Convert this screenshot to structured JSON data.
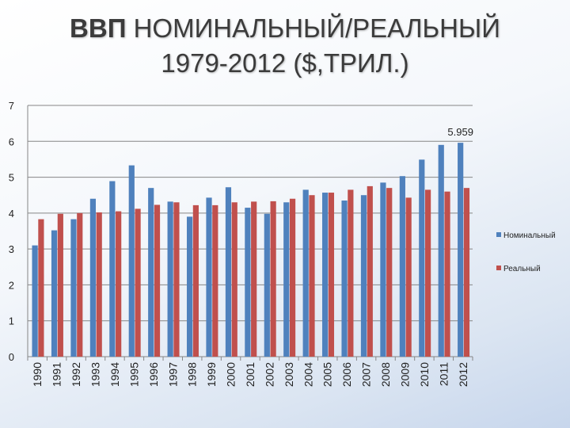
{
  "title_bold": "ВВП",
  "title_line1_rest": "НОМИНАЛЬНЫЙ/РЕАЛЬНЫЙ",
  "title_line2": "1979-2012 ($,ТРИЛ.)",
  "colors": {
    "nominal": "#4f81bd",
    "real": "#c0504d",
    "grid": "#868686",
    "text": "#222222"
  },
  "chart_data": {
    "type": "bar",
    "title": "ВВП НОМИНАЛЬНЫЙ/РЕАЛЬНЫЙ 1979-2012 ($,ТРИЛ.)",
    "categories": [
      "1990",
      "1991",
      "1992",
      "1993",
      "1994",
      "1995",
      "1996",
      "1997",
      "1998",
      "1999",
      "2000",
      "2001",
      "2002",
      "2003",
      "2004",
      "2005",
      "2006",
      "2007",
      "2008",
      "2009",
      "2010",
      "2011",
      "2012"
    ],
    "series": [
      {
        "name": "Номинальный",
        "values": [
          3.1,
          3.52,
          3.83,
          4.4,
          4.89,
          5.33,
          4.7,
          4.32,
          3.9,
          4.43,
          4.72,
          4.15,
          3.98,
          4.3,
          4.65,
          4.57,
          4.35,
          4.5,
          4.85,
          5.03,
          5.49,
          5.9,
          5.959
        ]
      },
      {
        "name": "Реальный",
        "values": [
          3.83,
          3.98,
          4.0,
          4.02,
          4.05,
          4.12,
          4.23,
          4.3,
          4.22,
          4.22,
          4.3,
          4.32,
          4.33,
          4.4,
          4.5,
          4.57,
          4.65,
          4.75,
          4.7,
          4.43,
          4.65,
          4.6,
          4.7
        ]
      }
    ],
    "ylim": [
      0,
      7
    ],
    "yticks": [
      0,
      1,
      2,
      3,
      4,
      5,
      6,
      7
    ],
    "grid": true,
    "legend": "right",
    "annotations": [
      {
        "category": "2012",
        "series": "Номинальный",
        "text": "5.959"
      }
    ]
  }
}
